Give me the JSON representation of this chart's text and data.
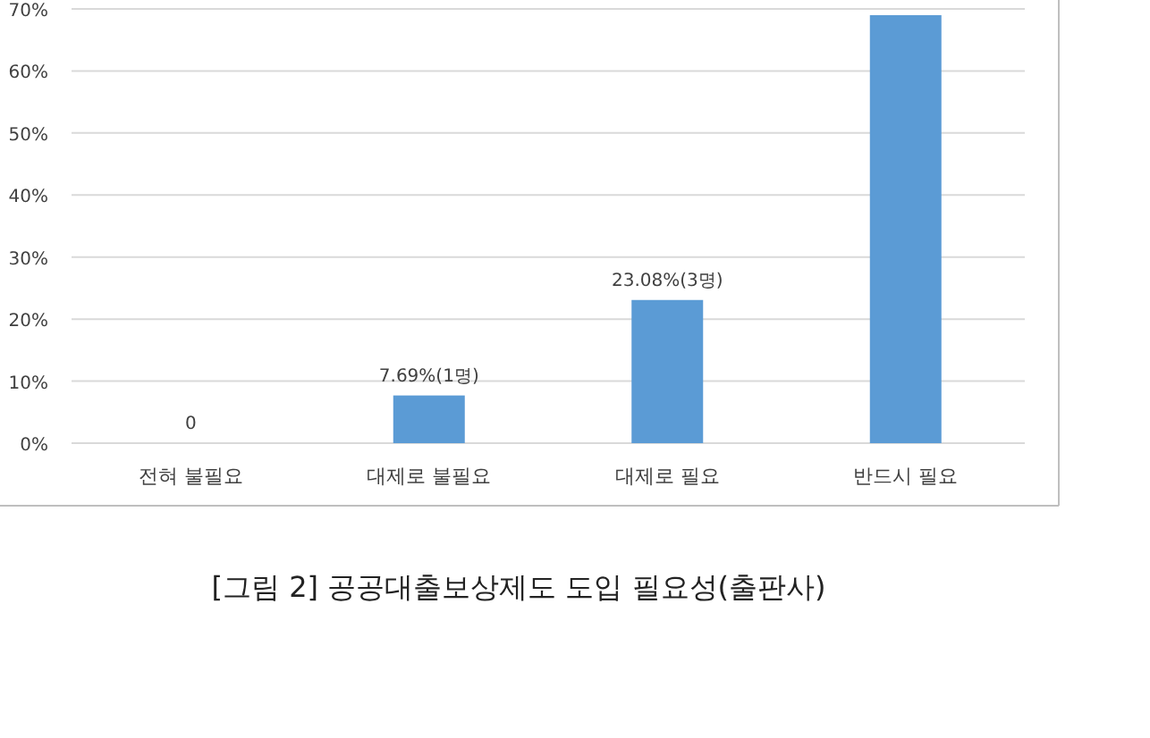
{
  "chart_data": {
    "type": "bar",
    "title": "[그림 2] 공공대출보상제도 도입 필요성(출판사)",
    "categories": [
      "전혀 불필요",
      "대제로 불필요",
      "대제로 필요",
      "반드시 필요"
    ],
    "values": [
      0,
      7.69,
      23.08,
      69
    ],
    "value_labels": [
      "0",
      "7.69%(1명)",
      "23.08%(3명)",
      null
    ],
    "color": "#5b9bd5",
    "ylim": [
      0,
      70
    ],
    "yticks": [
      {
        "value": 0,
        "label": "0%"
      },
      {
        "value": 10,
        "label": "10%"
      },
      {
        "value": 20,
        "label": "20%"
      },
      {
        "value": 30,
        "label": "30%"
      },
      {
        "value": 40,
        "label": "40%"
      },
      {
        "value": 50,
        "label": "50%"
      },
      {
        "value": 60,
        "label": "60%"
      },
      {
        "value": 70,
        "label": "70%"
      }
    ],
    "grid": "y"
  }
}
